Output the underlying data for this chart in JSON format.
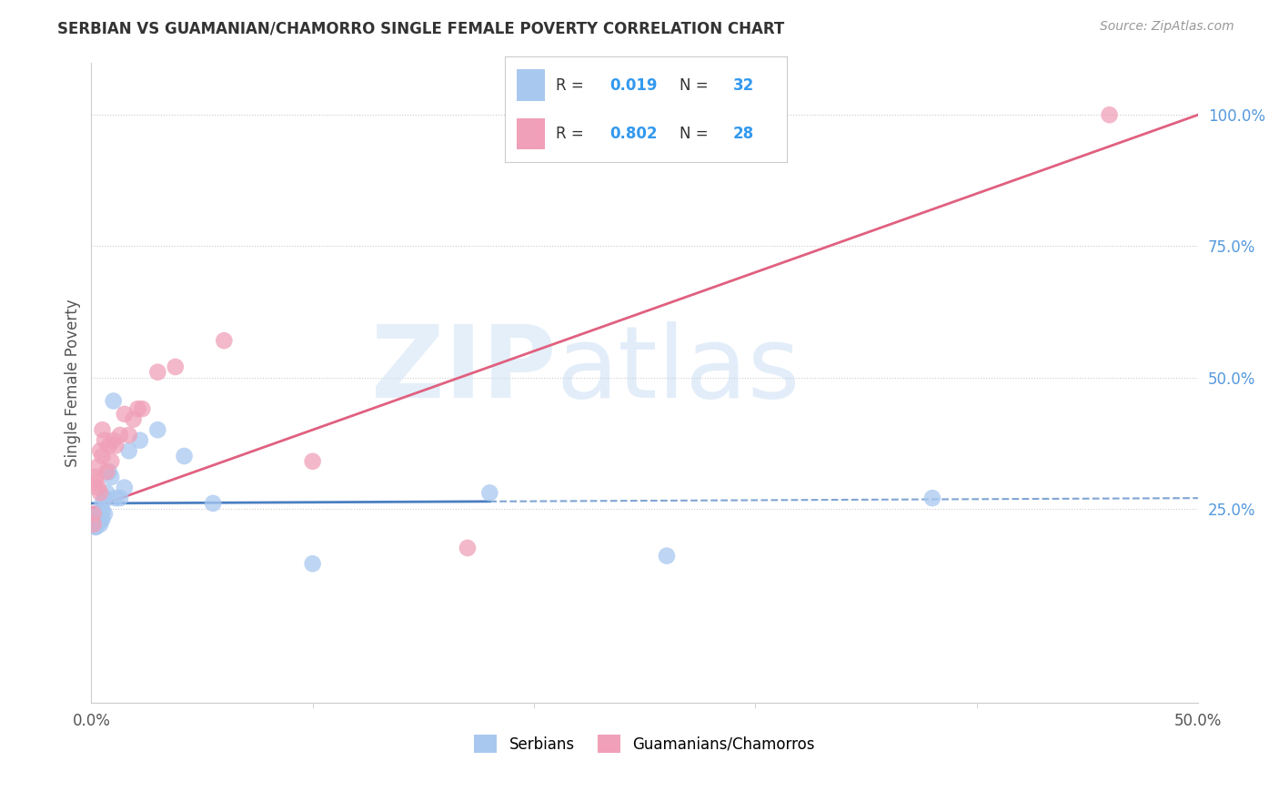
{
  "title": "SERBIAN VS GUAMANIAN/CHAMORRO SINGLE FEMALE POVERTY CORRELATION CHART",
  "source": "Source: ZipAtlas.com",
  "ylabel": "Single Female Poverty",
  "xlim": [
    0.0,
    0.5
  ],
  "ylim": [
    -0.12,
    1.1
  ],
  "yticks_right": [
    0.25,
    0.5,
    0.75,
    1.0
  ],
  "yticklabels_right": [
    "25.0%",
    "50.0%",
    "75.0%",
    "100.0%"
  ],
  "watermark_zip": "ZIP",
  "watermark_atlas": "atlas",
  "legend_label1": "Serbians",
  "legend_label2": "Guamanians/Chamorros",
  "color_serbian": "#a8c8f0",
  "color_guam": "#f0a0b8",
  "color_serbian_line": "#4a7fc1",
  "color_guam_line": "#e06080",
  "color_grid": "#cccccc",
  "background_color": "#ffffff",
  "serbian_x": [
    0.001,
    0.001,
    0.002,
    0.002,
    0.002,
    0.003,
    0.003,
    0.003,
    0.004,
    0.004,
    0.004,
    0.005,
    0.005,
    0.005,
    0.006,
    0.006,
    0.007,
    0.008,
    0.009,
    0.01,
    0.011,
    0.013,
    0.015,
    0.017,
    0.022,
    0.03,
    0.042,
    0.055,
    0.1,
    0.18,
    0.26,
    0.38
  ],
  "serbian_y": [
    0.235,
    0.22,
    0.215,
    0.225,
    0.215,
    0.235,
    0.225,
    0.23,
    0.23,
    0.22,
    0.225,
    0.245,
    0.26,
    0.23,
    0.27,
    0.24,
    0.28,
    0.32,
    0.31,
    0.455,
    0.27,
    0.27,
    0.29,
    0.36,
    0.38,
    0.4,
    0.35,
    0.26,
    0.145,
    0.28,
    0.16,
    0.27
  ],
  "guam_x": [
    0.001,
    0.001,
    0.002,
    0.002,
    0.003,
    0.003,
    0.004,
    0.004,
    0.005,
    0.005,
    0.006,
    0.007,
    0.008,
    0.009,
    0.01,
    0.011,
    0.013,
    0.015,
    0.017,
    0.019,
    0.021,
    0.023,
    0.03,
    0.038,
    0.06,
    0.1,
    0.17,
    0.46
  ],
  "guam_y": [
    0.24,
    0.22,
    0.3,
    0.31,
    0.33,
    0.29,
    0.36,
    0.28,
    0.4,
    0.35,
    0.38,
    0.32,
    0.37,
    0.34,
    0.38,
    0.37,
    0.39,
    0.43,
    0.39,
    0.42,
    0.44,
    0.44,
    0.51,
    0.52,
    0.57,
    0.34,
    0.175,
    1.0
  ],
  "blue_line_x": [
    0.0,
    0.5
  ],
  "blue_line_y_intercept": 0.26,
  "blue_line_slope": 0.02,
  "pink_line_x": [
    0.0,
    0.5
  ],
  "pink_line_y_intercept": 0.25,
  "pink_line_slope": 1.5
}
